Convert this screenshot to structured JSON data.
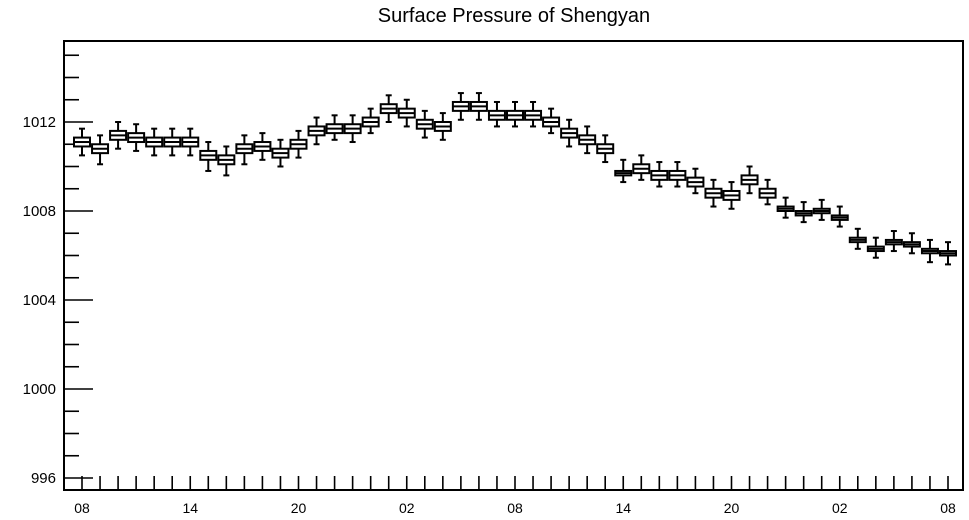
{
  "chart_data": {
    "type": "box",
    "title": "Surface Pressure of Shengyan",
    "xlabel": "",
    "ylabel": "",
    "ylim": [
      996,
      1015
    ],
    "yticks": [
      996,
      1000,
      1004,
      1008,
      1012
    ],
    "y_minor_step": 1,
    "x_tick_labels": [
      "08",
      "14",
      "20",
      "02",
      "08",
      "14",
      "20",
      "02",
      "08"
    ],
    "x_labeled_every": 6,
    "grid": false,
    "series": [
      {
        "values": [
          1011.1,
          1010.8,
          1011.4,
          1011.3,
          1011.1,
          1011.1,
          1011.1,
          1010.5,
          1010.3,
          1010.8,
          1010.9,
          1010.6,
          1011.0,
          1011.6,
          1011.7,
          1011.7,
          1012.0,
          1012.6,
          1012.4,
          1011.9,
          1011.8,
          1012.7,
          1012.7,
          1012.3,
          1012.3,
          1012.3,
          1012.0,
          1011.5,
          1011.2,
          1010.8,
          1009.7,
          1009.9,
          1009.6,
          1009.6,
          1009.3,
          1008.8,
          1008.7,
          1009.4,
          1008.8,
          1008.1,
          1007.9,
          1008.0,
          1007.7,
          1006.7,
          1006.3,
          1006.6,
          1006.5,
          1006.2,
          1006.1
        ],
        "q1": [
          1010.9,
          1010.6,
          1011.2,
          1011.1,
          1010.9,
          1010.9,
          1010.9,
          1010.3,
          1010.1,
          1010.6,
          1010.7,
          1010.4,
          1010.8,
          1011.4,
          1011.5,
          1011.5,
          1011.8,
          1012.4,
          1012.2,
          1011.7,
          1011.6,
          1012.5,
          1012.5,
          1012.1,
          1012.1,
          1012.1,
          1011.8,
          1011.3,
          1011.0,
          1010.6,
          1009.6,
          1009.7,
          1009.4,
          1009.4,
          1009.1,
          1008.6,
          1008.5,
          1009.2,
          1008.6,
          1008.0,
          1007.8,
          1007.9,
          1007.6,
          1006.6,
          1006.2,
          1006.5,
          1006.4,
          1006.1,
          1006.0
        ],
        "q3": [
          1011.3,
          1011.0,
          1011.6,
          1011.5,
          1011.3,
          1011.3,
          1011.3,
          1010.7,
          1010.5,
          1011.0,
          1011.1,
          1010.8,
          1011.2,
          1011.8,
          1011.9,
          1011.9,
          1012.2,
          1012.8,
          1012.6,
          1012.1,
          1012.0,
          1012.9,
          1012.9,
          1012.5,
          1012.5,
          1012.5,
          1012.2,
          1011.7,
          1011.4,
          1011.0,
          1009.8,
          1010.1,
          1009.8,
          1009.8,
          1009.5,
          1009.0,
          1008.9,
          1009.6,
          1009.0,
          1008.2,
          1008.0,
          1008.1,
          1007.8,
          1006.8,
          1006.4,
          1006.7,
          1006.6,
          1006.3,
          1006.2
        ],
        "whisker_low": [
          1010.5,
          1010.1,
          1010.8,
          1010.7,
          1010.5,
          1010.5,
          1010.5,
          1009.8,
          1009.6,
          1010.1,
          1010.3,
          1010.0,
          1010.4,
          1011.0,
          1011.2,
          1011.1,
          1011.5,
          1012.0,
          1011.8,
          1011.3,
          1011.2,
          1012.1,
          1012.1,
          1011.8,
          1011.8,
          1011.8,
          1011.5,
          1010.9,
          1010.6,
          1010.2,
          1009.3,
          1009.4,
          1009.1,
          1009.1,
          1008.8,
          1008.2,
          1008.1,
          1008.8,
          1008.3,
          1007.7,
          1007.5,
          1007.6,
          1007.3,
          1006.3,
          1005.9,
          1006.2,
          1006.1,
          1005.7,
          1005.6
        ],
        "whisker_high": [
          1011.7,
          1011.4,
          1012.0,
          1011.9,
          1011.7,
          1011.7,
          1011.7,
          1011.1,
          1010.9,
          1011.4,
          1011.5,
          1011.2,
          1011.6,
          1012.2,
          1012.3,
          1012.3,
          1012.6,
          1013.2,
          1013.0,
          1012.5,
          1012.4,
          1013.3,
          1013.3,
          1012.9,
          1012.9,
          1012.9,
          1012.6,
          1012.1,
          1011.8,
          1011.4,
          1010.3,
          1010.5,
          1010.2,
          1010.2,
          1009.9,
          1009.4,
          1009.3,
          1010.0,
          1009.4,
          1008.6,
          1008.4,
          1008.5,
          1008.2,
          1007.2,
          1006.8,
          1007.1,
          1007.0,
          1006.7,
          1006.6
        ]
      }
    ]
  }
}
